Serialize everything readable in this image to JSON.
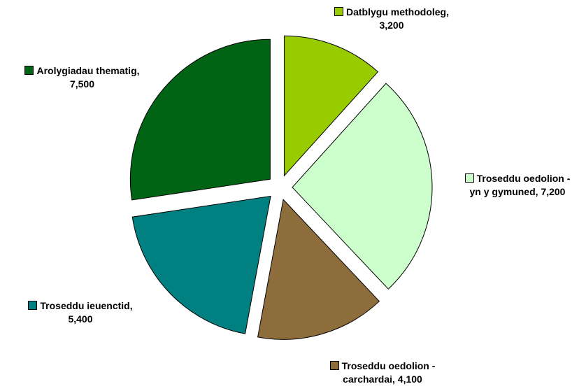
{
  "chart_data": {
    "type": "pie",
    "categories": [
      "Datblygu methodoleg,",
      "Troseddu oedolion - yn y gymuned,",
      "Troseddu oedolion - carchardai,",
      "Troseddu ieuenctid,",
      "Arolygiadau thematig,"
    ],
    "values": [
      3200,
      7200,
      4100,
      5400,
      7500
    ],
    "value_labels": [
      "3,200",
      "7,200",
      "4,100",
      "5,400",
      "7,500"
    ],
    "colors": [
      "#99cc00",
      "#ccffcc",
      "#8e6d3c",
      "#008080",
      "#006414"
    ],
    "exploded": true
  }
}
